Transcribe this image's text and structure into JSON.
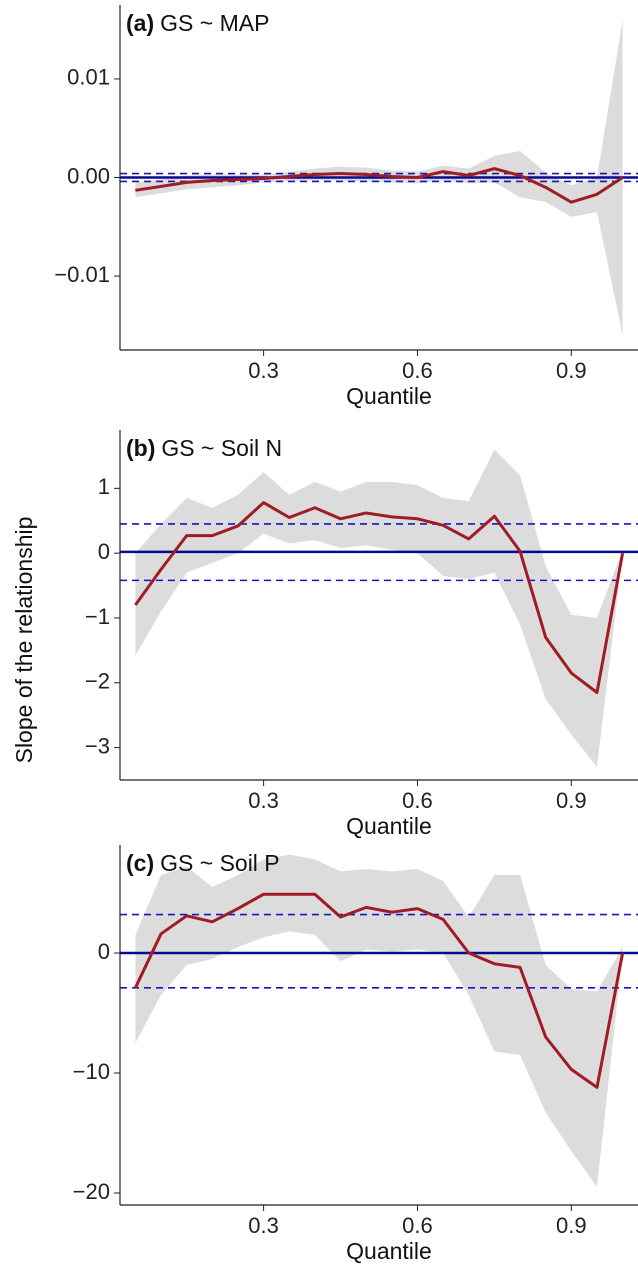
{
  "ylabel": "Slope of the relationship",
  "chart_data": [
    {
      "type": "line",
      "panel_label": "(a)",
      "title": "GS ~ MAP",
      "xlabel": "Quantile",
      "x": [
        0.05,
        0.1,
        0.15,
        0.2,
        0.25,
        0.3,
        0.35,
        0.4,
        0.45,
        0.5,
        0.55,
        0.6,
        0.65,
        0.7,
        0.75,
        0.8,
        0.85,
        0.9,
        0.95,
        1.0
      ],
      "values": [
        -0.0013,
        -0.0009,
        -0.0005,
        -0.0003,
        -0.0002,
        -0.0001,
        0.0001,
        0.0003,
        0.0004,
        0.0003,
        0.0001,
        0.0,
        0.0006,
        0.0002,
        0.0009,
        0.0002,
        -0.001,
        -0.0025,
        -0.0017,
        0.0
      ],
      "lower": [
        -0.002,
        -0.0016,
        -0.0012,
        -0.001,
        -0.0008,
        -0.0005,
        -0.0004,
        -0.0003,
        -0.0003,
        -0.0004,
        -0.0005,
        -0.0006,
        -0.0003,
        -0.0006,
        -0.0005,
        -0.002,
        -0.0025,
        -0.004,
        -0.0035,
        -0.016
      ],
      "upper": [
        -0.0005,
        -0.0002,
        0.0002,
        0.0003,
        0.0003,
        0.0003,
        0.0006,
        0.0009,
        0.0011,
        0.001,
        0.0007,
        0.0006,
        0.0012,
        0.0009,
        0.0022,
        0.0027,
        0.0005,
        -0.0008,
        0.0,
        0.016
      ],
      "color": "#a01c24",
      "band_color": "#dcdcdc",
      "reference": {
        "value": 0,
        "ci": [
          -0.0004,
          0.0004
        ],
        "color": "#1515c8",
        "line_color": "#0a0a8a"
      },
      "xlim": [
        0.02,
        1.03
      ],
      "xticks": [
        0.3,
        0.6,
        0.9
      ],
      "ylim": [
        -0.0175,
        0.0175
      ],
      "yticks": [
        {
          "value": -0.01,
          "label": "−0.01"
        },
        {
          "value": 0,
          "label": "0.00"
        },
        0.01
      ]
    },
    {
      "type": "line",
      "panel_label": "(b)",
      "title": "GS ~ Soil N",
      "xlabel": "Quantile",
      "x": [
        0.05,
        0.1,
        0.15,
        0.2,
        0.25,
        0.3,
        0.35,
        0.4,
        0.45,
        0.5,
        0.55,
        0.6,
        0.65,
        0.7,
        0.75,
        0.8,
        0.85,
        0.9,
        0.95,
        1.0
      ],
      "values": [
        -0.8,
        -0.25,
        0.27,
        0.27,
        0.42,
        0.78,
        0.55,
        0.7,
        0.53,
        0.62,
        0.56,
        0.53,
        0.43,
        0.22,
        0.57,
        0.03,
        -1.3,
        -1.85,
        -2.15,
        0
      ],
      "lower": [
        -1.58,
        -0.9,
        -0.3,
        -0.15,
        0.0,
        0.3,
        0.15,
        0.2,
        0.08,
        0.12,
        0.05,
        0.0,
        -0.35,
        -0.4,
        -0.3,
        -1.1,
        -2.25,
        -2.8,
        -3.3,
        0
      ],
      "upper": [
        0.0,
        0.45,
        0.85,
        0.7,
        0.9,
        1.25,
        0.9,
        1.1,
        0.95,
        1.1,
        1.1,
        1.05,
        0.85,
        0.8,
        1.6,
        1.2,
        -0.2,
        -0.95,
        -1.0,
        0.05
      ],
      "color": "#a01c24",
      "band_color": "#dcdcdc",
      "reference": {
        "value": 0.02,
        "ci": [
          -0.42,
          0.45
        ],
        "color": "#1515c8",
        "line_color": "#0a0a8a"
      },
      "xlim": [
        0.02,
        1.03
      ],
      "xticks": [
        0.3,
        0.6,
        0.9
      ],
      "ylim": [
        -3.5,
        1.9
      ],
      "yticks": [
        {
          "value": -3,
          "label": "−3"
        },
        {
          "value": -2,
          "label": "−2"
        },
        {
          "value": -1,
          "label": "−1"
        },
        0,
        1
      ]
    },
    {
      "type": "line",
      "panel_label": "(c)",
      "title": "GS ~ Soil P",
      "xlabel": "Quantile",
      "x": [
        0.05,
        0.1,
        0.15,
        0.2,
        0.25,
        0.3,
        0.35,
        0.4,
        0.45,
        0.5,
        0.55,
        0.6,
        0.65,
        0.7,
        0.75,
        0.8,
        0.85,
        0.9,
        0.95,
        1.0
      ],
      "values": [
        -2.9,
        1.6,
        3.1,
        2.6,
        3.7,
        4.9,
        4.9,
        4.9,
        3.0,
        3.8,
        3.4,
        3.7,
        2.8,
        0.0,
        -0.9,
        -1.2,
        -7.0,
        -9.7,
        -11.2,
        0
      ],
      "lower": [
        -7.5,
        -3.5,
        -1.0,
        -0.5,
        0.5,
        1.3,
        1.8,
        1.5,
        -0.7,
        0.3,
        0.1,
        0.3,
        0.0,
        -3.5,
        -8.2,
        -8.5,
        -13.3,
        -16.5,
        -19.5,
        0
      ],
      "upper": [
        1.5,
        6.5,
        7.2,
        5.5,
        6.5,
        7.8,
        8.2,
        7.8,
        6.8,
        7.0,
        6.8,
        7.0,
        6.0,
        3.0,
        6.5,
        6.5,
        -1.0,
        -3.0,
        -3.2,
        0.5
      ],
      "color": "#a01c24",
      "band_color": "#dcdcdc",
      "reference": {
        "value": 0,
        "ci": [
          -2.9,
          3.2
        ],
        "color": "#1515c8",
        "line_color": "#0a0a8a"
      },
      "xlim": [
        0.02,
        1.03
      ],
      "xticks": [
        0.3,
        0.6,
        0.9
      ],
      "ylim": [
        -21,
        9
      ],
      "yticks": [
        {
          "value": -20,
          "label": "−20"
        },
        {
          "value": -10,
          "label": "−10"
        },
        0
      ]
    }
  ]
}
